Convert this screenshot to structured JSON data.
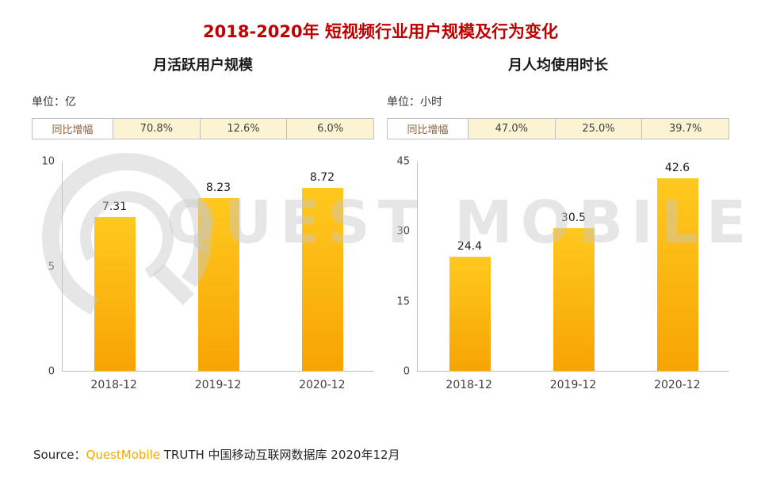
{
  "page_title": "2018-2020年 短视频行业用户规模及行为变化",
  "watermark": {
    "text": "QUEST MOBILE"
  },
  "source": {
    "prefix": "Source：",
    "brand": "QuestMobile",
    "rest": " TRUTH 中国移动互联网数据库 2020年12月"
  },
  "colors": {
    "title-red": "#c00000",
    "bar-top": "#ffc91e",
    "bar-bottom": "#f7a404",
    "growth-bg": "#fcf3d2",
    "brand-orange": "#f7a600",
    "axis-gray": "#bfbfbf",
    "watermark-gray": "rgba(200,200,200,0.45)"
  },
  "chart_data": [
    {
      "type": "bar",
      "title": "月活跃用户规模",
      "unit_label": "单位：亿",
      "growth_label": "同比增幅",
      "growth_values": [
        "70.8%",
        "12.6%",
        "6.0%"
      ],
      "categories": [
        "2018-12",
        "2019-12",
        "2020-12"
      ],
      "values": [
        7.31,
        8.23,
        8.72
      ],
      "ylim": [
        0,
        10
      ],
      "yticks": [
        0,
        5,
        10
      ],
      "legend": "none",
      "grid": false
    },
    {
      "type": "bar",
      "title": "月人均使用时长",
      "unit_label": "单位：小时",
      "growth_label": "同比增幅",
      "growth_values": [
        "47.0%",
        "25.0%",
        "39.7%"
      ],
      "categories": [
        "2018-12",
        "2019-12",
        "2020-12"
      ],
      "values": [
        24.4,
        30.5,
        42.6
      ],
      "ylim": [
        0,
        45
      ],
      "yticks": [
        0,
        15,
        30,
        45
      ],
      "legend": "none",
      "grid": false
    }
  ]
}
